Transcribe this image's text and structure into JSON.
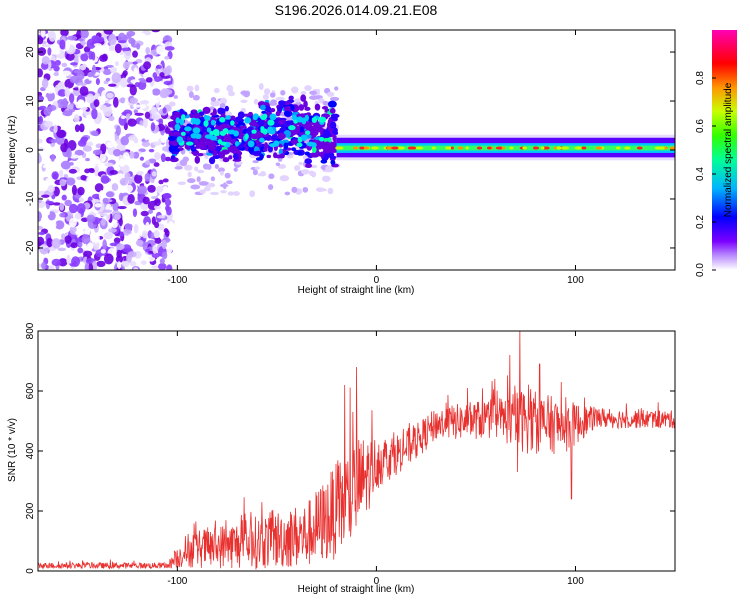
{
  "title": "S196.2026.014.09.21.E08",
  "chart_data": [
    {
      "type": "heatmap",
      "name": "spectrogram",
      "xlabel": "Height of straight line (km)",
      "ylabel": "Frequency (Hz)",
      "xlim": [
        -170,
        150
      ],
      "ylim": [
        -24.5,
        24.5
      ],
      "xticks": [
        -100,
        0,
        100
      ],
      "yticks": [
        -20,
        -10,
        0,
        10,
        20
      ],
      "colorbar": {
        "label": "Normalized spectral amplitude",
        "range": [
          0,
          1
        ],
        "ticks": [
          "0.0",
          "0.2",
          "0.4",
          "0.6",
          "0.8"
        ],
        "colormap": [
          "#ffffff",
          "#7b00ff",
          "#0000ff",
          "#00c8ff",
          "#00ff64",
          "#c8ff00",
          "#ff9600",
          "#ff0000",
          "#ff00b4"
        ]
      },
      "regions": [
        {
          "description": "broadband noise",
          "x": [
            -170,
            -103
          ],
          "freq": [
            -24.5,
            24.5
          ],
          "amplitude": 0.05
        },
        {
          "description": "turbulent signal",
          "x": [
            -103,
            -20
          ],
          "freq": [
            -6,
            12
          ],
          "amplitude": 0.25
        },
        {
          "description": "steady carrier",
          "x": [
            -20,
            150
          ],
          "freq": [
            -1.5,
            2.5
          ],
          "amplitude": 0.4
        }
      ]
    },
    {
      "type": "line",
      "name": "snr",
      "xlabel": "Height of straight line (km)",
      "ylabel": "SNR (10 * v/v)",
      "xlim": [
        -170,
        150
      ],
      "ylim": [
        0,
        800
      ],
      "xticks": [
        -100,
        0,
        100
      ],
      "yticks": [
        0,
        200,
        400,
        600,
        800
      ],
      "color": "#e8312f",
      "envelope": [
        {
          "x": -170,
          "mean": 18,
          "spread": 10
        },
        {
          "x": -105,
          "mean": 18,
          "spread": 10
        },
        {
          "x": -95,
          "mean": 70,
          "spread": 60
        },
        {
          "x": -60,
          "mean": 95,
          "spread": 90
        },
        {
          "x": -35,
          "mean": 120,
          "spread": 110
        },
        {
          "x": -20,
          "mean": 200,
          "spread": 160
        },
        {
          "x": -10,
          "mean": 270,
          "spread": 180
        },
        {
          "x": 0,
          "mean": 360,
          "spread": 90
        },
        {
          "x": 10,
          "mean": 390,
          "spread": 70
        },
        {
          "x": 20,
          "mean": 430,
          "spread": 60
        },
        {
          "x": 30,
          "mean": 490,
          "spread": 55
        },
        {
          "x": 60,
          "mean": 510,
          "spread": 70
        },
        {
          "x": 75,
          "mean": 500,
          "spread": 110
        },
        {
          "x": 95,
          "mean": 480,
          "spread": 90
        },
        {
          "x": 110,
          "mean": 510,
          "spread": 35
        },
        {
          "x": 150,
          "mean": 505,
          "spread": 30
        }
      ],
      "peaks": [
        {
          "x": -10,
          "value": 680
        },
        {
          "x": -16,
          "value": 620
        },
        {
          "x": 72,
          "value": 815
        },
        {
          "x": 67,
          "value": 720
        },
        {
          "x": 82,
          "value": 690
        },
        {
          "x": 98,
          "value": 240
        },
        {
          "x": 71,
          "value": 330
        }
      ]
    }
  ]
}
